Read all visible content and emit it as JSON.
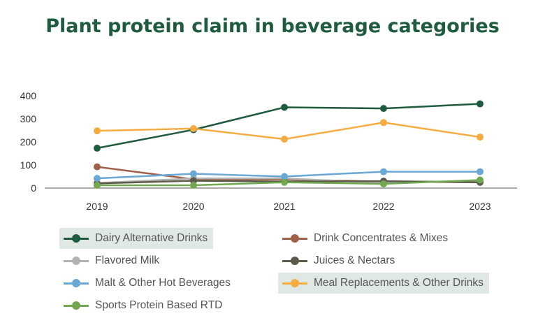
{
  "title": "Plant protein claim in beverage categories",
  "chart_data": {
    "type": "line",
    "title": "Plant protein claim in beverage categories",
    "xlabel": "",
    "ylabel": "",
    "x": [
      "2019",
      "2020",
      "2021",
      "2022",
      "2023"
    ],
    "ylim": [
      0,
      400
    ],
    "yticks": [
      "0",
      "100",
      "200",
      "300",
      "400"
    ],
    "grid": false,
    "legend_position": "bottom",
    "series": [
      {
        "name": "Dairy Alternative Drinks",
        "color": "#1f5b3f",
        "values": [
          173,
          253,
          350,
          345,
          365
        ],
        "highlighted": true
      },
      {
        "name": "Drink Concentrates & Mixes",
        "color": "#a0614a",
        "values": [
          92,
          38,
          37,
          28,
          25
        ],
        "highlighted": false
      },
      {
        "name": "Flavored Milk",
        "color": "#b3b3b3",
        "values": [
          22,
          42,
          42,
          22,
          33
        ],
        "highlighted": false
      },
      {
        "name": "Juices & Nectars",
        "color": "#5c5a48",
        "values": [
          20,
          32,
          28,
          30,
          25
        ],
        "highlighted": false
      },
      {
        "name": "Malt & Other Hot Beverages",
        "color": "#6aa8d6",
        "values": [
          42,
          62,
          50,
          71,
          71
        ],
        "highlighted": false
      },
      {
        "name": "Meal Replacements & Other Drinks",
        "color": "#f5ad42",
        "values": [
          248,
          258,
          212,
          284,
          221
        ],
        "highlighted": true
      },
      {
        "name": "Sports Protein Based RTD",
        "color": "#72a950",
        "values": [
          12,
          12,
          25,
          18,
          35
        ],
        "highlighted": false
      }
    ]
  }
}
